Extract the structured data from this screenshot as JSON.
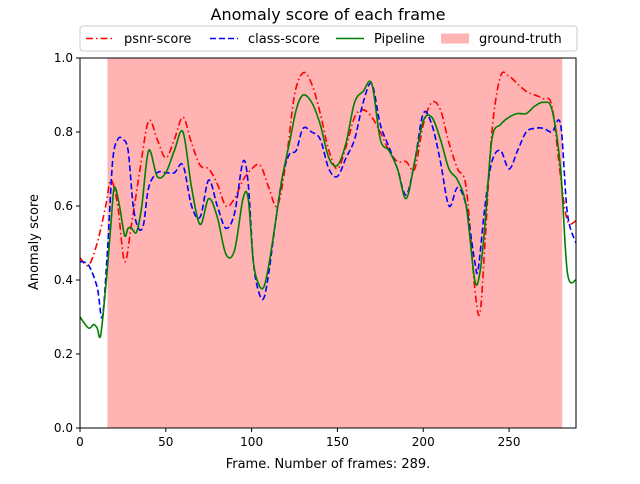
{
  "chart_data": {
    "type": "line",
    "title": "Anomaly score of each frame",
    "xlabel": "Frame. Number of frames: 289.",
    "ylabel": "Anomaly score",
    "xlim": [
      0,
      289
    ],
    "ylim": [
      0.0,
      1.0
    ],
    "xticks": [
      0,
      50,
      100,
      150,
      200,
      250
    ],
    "yticks": [
      0.0,
      0.2,
      0.4,
      0.6,
      0.8,
      1.0
    ],
    "xtick_labels": [
      "0",
      "50",
      "100",
      "150",
      "200",
      "250"
    ],
    "ytick_labels": [
      "0.0",
      "0.2",
      "0.4",
      "0.6",
      "0.8",
      "1.0"
    ],
    "grid": false,
    "legend_position": "top-center",
    "ground_truth": {
      "name": "ground-truth",
      "color": "#ffb3b3",
      "ranges": [
        [
          16,
          281
        ]
      ]
    },
    "series": [
      {
        "name": "psnr-score",
        "color": "#ff0000",
        "style": "dashdot",
        "x": [
          0,
          5,
          10,
          15,
          18,
          22,
          26,
          30,
          35,
          40,
          45,
          50,
          55,
          60,
          65,
          70,
          75,
          80,
          85,
          90,
          95,
          100,
          105,
          110,
          115,
          120,
          125,
          130,
          135,
          140,
          145,
          150,
          155,
          160,
          165,
          170,
          175,
          180,
          185,
          190,
          195,
          200,
          205,
          210,
          215,
          220,
          225,
          230,
          233,
          236,
          240,
          245,
          250,
          255,
          260,
          265,
          270,
          275,
          280,
          284,
          289
        ],
        "values": [
          0.46,
          0.44,
          0.5,
          0.6,
          0.67,
          0.6,
          0.45,
          0.55,
          0.7,
          0.83,
          0.78,
          0.73,
          0.78,
          0.84,
          0.77,
          0.71,
          0.7,
          0.66,
          0.6,
          0.62,
          0.67,
          0.7,
          0.71,
          0.65,
          0.6,
          0.72,
          0.9,
          0.96,
          0.93,
          0.85,
          0.75,
          0.7,
          0.76,
          0.84,
          0.86,
          0.84,
          0.8,
          0.75,
          0.72,
          0.72,
          0.7,
          0.82,
          0.88,
          0.86,
          0.77,
          0.7,
          0.65,
          0.38,
          0.31,
          0.5,
          0.8,
          0.95,
          0.95,
          0.93,
          0.91,
          0.9,
          0.89,
          0.87,
          0.68,
          0.56,
          0.56
        ]
      },
      {
        "name": "class-score",
        "color": "#0000ff",
        "style": "dashed",
        "x": [
          0,
          5,
          10,
          13,
          16,
          19,
          22,
          25,
          28,
          31,
          34,
          37,
          40,
          45,
          50,
          55,
          60,
          65,
          70,
          75,
          80,
          85,
          90,
          95,
          98,
          101,
          104,
          107,
          110,
          114,
          118,
          122,
          126,
          130,
          135,
          140,
          145,
          150,
          155,
          160,
          165,
          170,
          175,
          180,
          185,
          190,
          195,
          200,
          205,
          210,
          215,
          220,
          225,
          230,
          232,
          236,
          240,
          245,
          250,
          255,
          260,
          265,
          270,
          275,
          280,
          284,
          289
        ],
        "values": [
          0.45,
          0.44,
          0.38,
          0.3,
          0.48,
          0.72,
          0.78,
          0.78,
          0.75,
          0.6,
          0.54,
          0.55,
          0.65,
          0.69,
          0.69,
          0.69,
          0.71,
          0.6,
          0.57,
          0.67,
          0.6,
          0.54,
          0.58,
          0.72,
          0.66,
          0.45,
          0.37,
          0.35,
          0.42,
          0.56,
          0.68,
          0.74,
          0.75,
          0.81,
          0.8,
          0.78,
          0.7,
          0.68,
          0.73,
          0.78,
          0.88,
          0.93,
          0.82,
          0.76,
          0.7,
          0.63,
          0.72,
          0.85,
          0.82,
          0.72,
          0.6,
          0.65,
          0.6,
          0.45,
          0.43,
          0.6,
          0.72,
          0.75,
          0.7,
          0.75,
          0.8,
          0.81,
          0.81,
          0.8,
          0.82,
          0.58,
          0.5
        ]
      },
      {
        "name": "Pipeline",
        "color": "#008000",
        "style": "solid",
        "x": [
          0,
          5,
          8,
          10,
          12,
          15,
          18,
          20,
          23,
          26,
          28,
          30,
          33,
          36,
          40,
          45,
          50,
          55,
          60,
          65,
          70,
          75,
          80,
          85,
          90,
          95,
          98,
          101,
          104,
          107,
          110,
          114,
          118,
          122,
          126,
          130,
          135,
          140,
          145,
          150,
          155,
          160,
          165,
          170,
          175,
          180,
          185,
          190,
          195,
          200,
          205,
          210,
          215,
          220,
          225,
          230,
          233,
          236,
          240,
          245,
          250,
          255,
          260,
          265,
          270,
          275,
          280,
          284,
          289
        ],
        "values": [
          0.3,
          0.27,
          0.28,
          0.27,
          0.25,
          0.38,
          0.55,
          0.65,
          0.6,
          0.52,
          0.54,
          0.54,
          0.53,
          0.6,
          0.75,
          0.68,
          0.69,
          0.75,
          0.8,
          0.65,
          0.55,
          0.62,
          0.57,
          0.47,
          0.48,
          0.62,
          0.62,
          0.45,
          0.39,
          0.38,
          0.44,
          0.56,
          0.68,
          0.77,
          0.86,
          0.9,
          0.88,
          0.82,
          0.73,
          0.71,
          0.77,
          0.88,
          0.91,
          0.93,
          0.78,
          0.75,
          0.7,
          0.62,
          0.72,
          0.83,
          0.84,
          0.78,
          0.7,
          0.67,
          0.6,
          0.4,
          0.42,
          0.55,
          0.78,
          0.82,
          0.84,
          0.85,
          0.85,
          0.87,
          0.88,
          0.86,
          0.7,
          0.42,
          0.4
        ]
      }
    ]
  }
}
